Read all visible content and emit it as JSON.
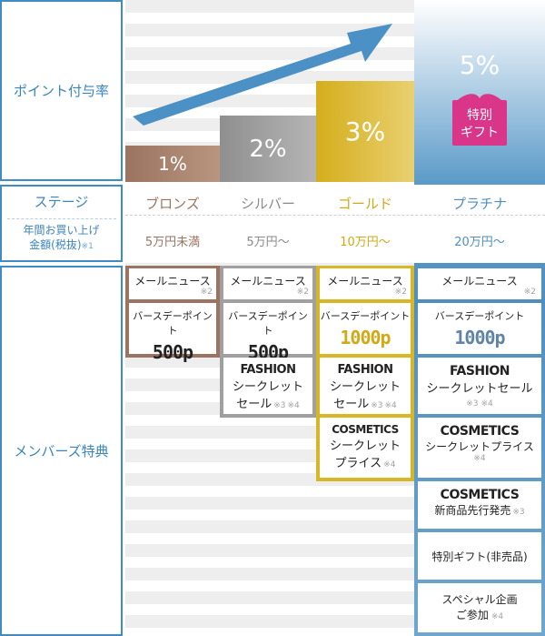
{
  "labels": {
    "point_rate": "ポイント付与率",
    "stage": "ステージ",
    "purchase_amount_line1": "年間お買い上げ",
    "purchase_amount_line2": "金額(税抜)",
    "purchase_amount_note": "※1",
    "member_benefits": "メンバーズ特典"
  },
  "colors": {
    "label_blue": "#3a85c0",
    "bronze": "#9a7460",
    "silver": "#9a9a9a",
    "gold": "#d8b626",
    "platinum": "#4f8fbf",
    "gift_pink": "#d9368a"
  },
  "rates": {
    "bronze": "1%",
    "silver": "2%",
    "gold": "3%",
    "platinum": "5%",
    "gift_line1": "特別",
    "gift_line2": "ギフト",
    "gift_icon": "book-gift-icon"
  },
  "stages": {
    "bronze": {
      "name": "ブロンズ",
      "amount": "5万円未満"
    },
    "silver": {
      "name": "シルバー",
      "amount": "5万円〜"
    },
    "gold": {
      "name": "ゴールド",
      "amount": "10万円〜"
    },
    "platinum": {
      "name": "プラチナ",
      "amount": "20万円〜"
    }
  },
  "benefits": {
    "mail_news": "メールニュース",
    "mail_note": "※2",
    "birthday_points": "バースデーポイント",
    "points_500": "500p",
    "points_1000": "1000p",
    "fashion": "FASHION",
    "secret_sale_line1": "シークレット",
    "secret_sale_line2": "セール",
    "secret_sale_full": "シークレットセール",
    "note3": "※3",
    "note4": "※4",
    "cosmetics": "COSMETICS",
    "secret_price_line1": "シークレット",
    "secret_price_line2": "プライス",
    "secret_price_full": "シークレットプライス",
    "new_products": "新商品先行発売",
    "special_gift": "特別ギフト(非売品)",
    "special_event_line1": "スペシャル企画",
    "special_event_line2": "ご参加"
  }
}
